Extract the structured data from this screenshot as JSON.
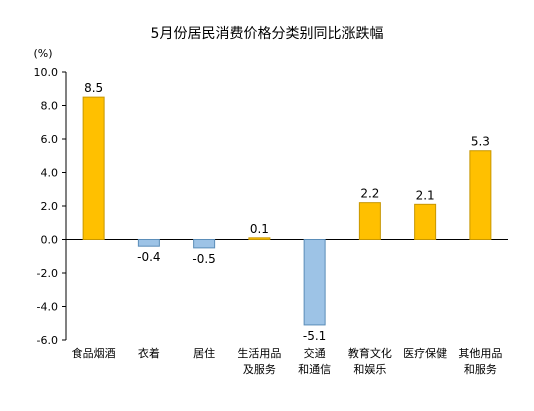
{
  "chart_data": {
    "type": "bar",
    "title": "5月份居民消费价格分类别同比涨跌幅",
    "ylabel": "(%)",
    "ylim": [
      -6.0,
      10.0
    ],
    "yticks": [
      10.0,
      8.0,
      6.0,
      4.0,
      2.0,
      0.0,
      -2.0,
      -4.0,
      -6.0
    ],
    "ytick_labels": [
      "10.0",
      "8.0",
      "6.0",
      "4.0",
      "2.0",
      "0.0",
      "-2.0",
      "-4.0",
      "-6.0"
    ],
    "categories": [
      [
        "食品烟酒"
      ],
      [
        "衣着"
      ],
      [
        "居住"
      ],
      [
        "生活用品",
        "及服务"
      ],
      [
        "交通",
        "和通信"
      ],
      [
        "教育文化",
        "和娱乐"
      ],
      [
        "医疗保健"
      ],
      [
        "其他用品",
        "和服务"
      ]
    ],
    "values": [
      8.5,
      -0.4,
      -0.5,
      0.1,
      -5.1,
      2.2,
      2.1,
      5.3
    ],
    "value_labels": [
      "8.5",
      "-0.4",
      "-0.5",
      "0.1",
      "-5.1",
      "2.2",
      "2.1",
      "5.3"
    ],
    "colors": {
      "positive": "#FFC000",
      "positive_stroke": "#C89600",
      "negative": "#9DC3E6",
      "negative_stroke": "#5B8DB8",
      "axis": "#000000",
      "text": "#000000"
    },
    "grid": false,
    "legend": "none"
  }
}
